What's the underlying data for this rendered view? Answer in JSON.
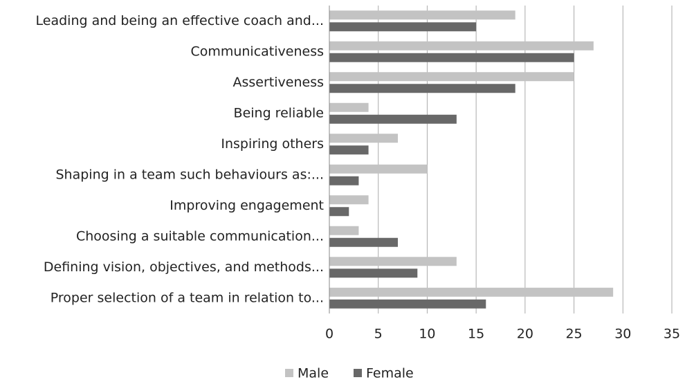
{
  "chart_data": {
    "type": "bar",
    "orientation": "horizontal",
    "categories": [
      "Leading and being an effective coach and...",
      "Communicativeness",
      "Assertiveness",
      "Being reliable",
      "Inspiring others",
      "Shaping in a team such behaviours as:...",
      "Improving engagement",
      "Choosing a suitable communication...",
      "Defining vision, objectives, and methods...",
      "Proper selection of a team in relation to..."
    ],
    "series": [
      {
        "name": "Male",
        "color": "#c3c3c3",
        "values": [
          19,
          27,
          25,
          4,
          7,
          10,
          4,
          3,
          13,
          29
        ]
      },
      {
        "name": "Female",
        "color": "#686868",
        "values": [
          15,
          25,
          19,
          13,
          4,
          3,
          2,
          7,
          9,
          16
        ]
      }
    ],
    "xlim": [
      0,
      35
    ],
    "xticks": [
      0,
      5,
      10,
      15,
      20,
      25,
      30,
      35
    ],
    "grid": true,
    "legend": "bottom"
  }
}
